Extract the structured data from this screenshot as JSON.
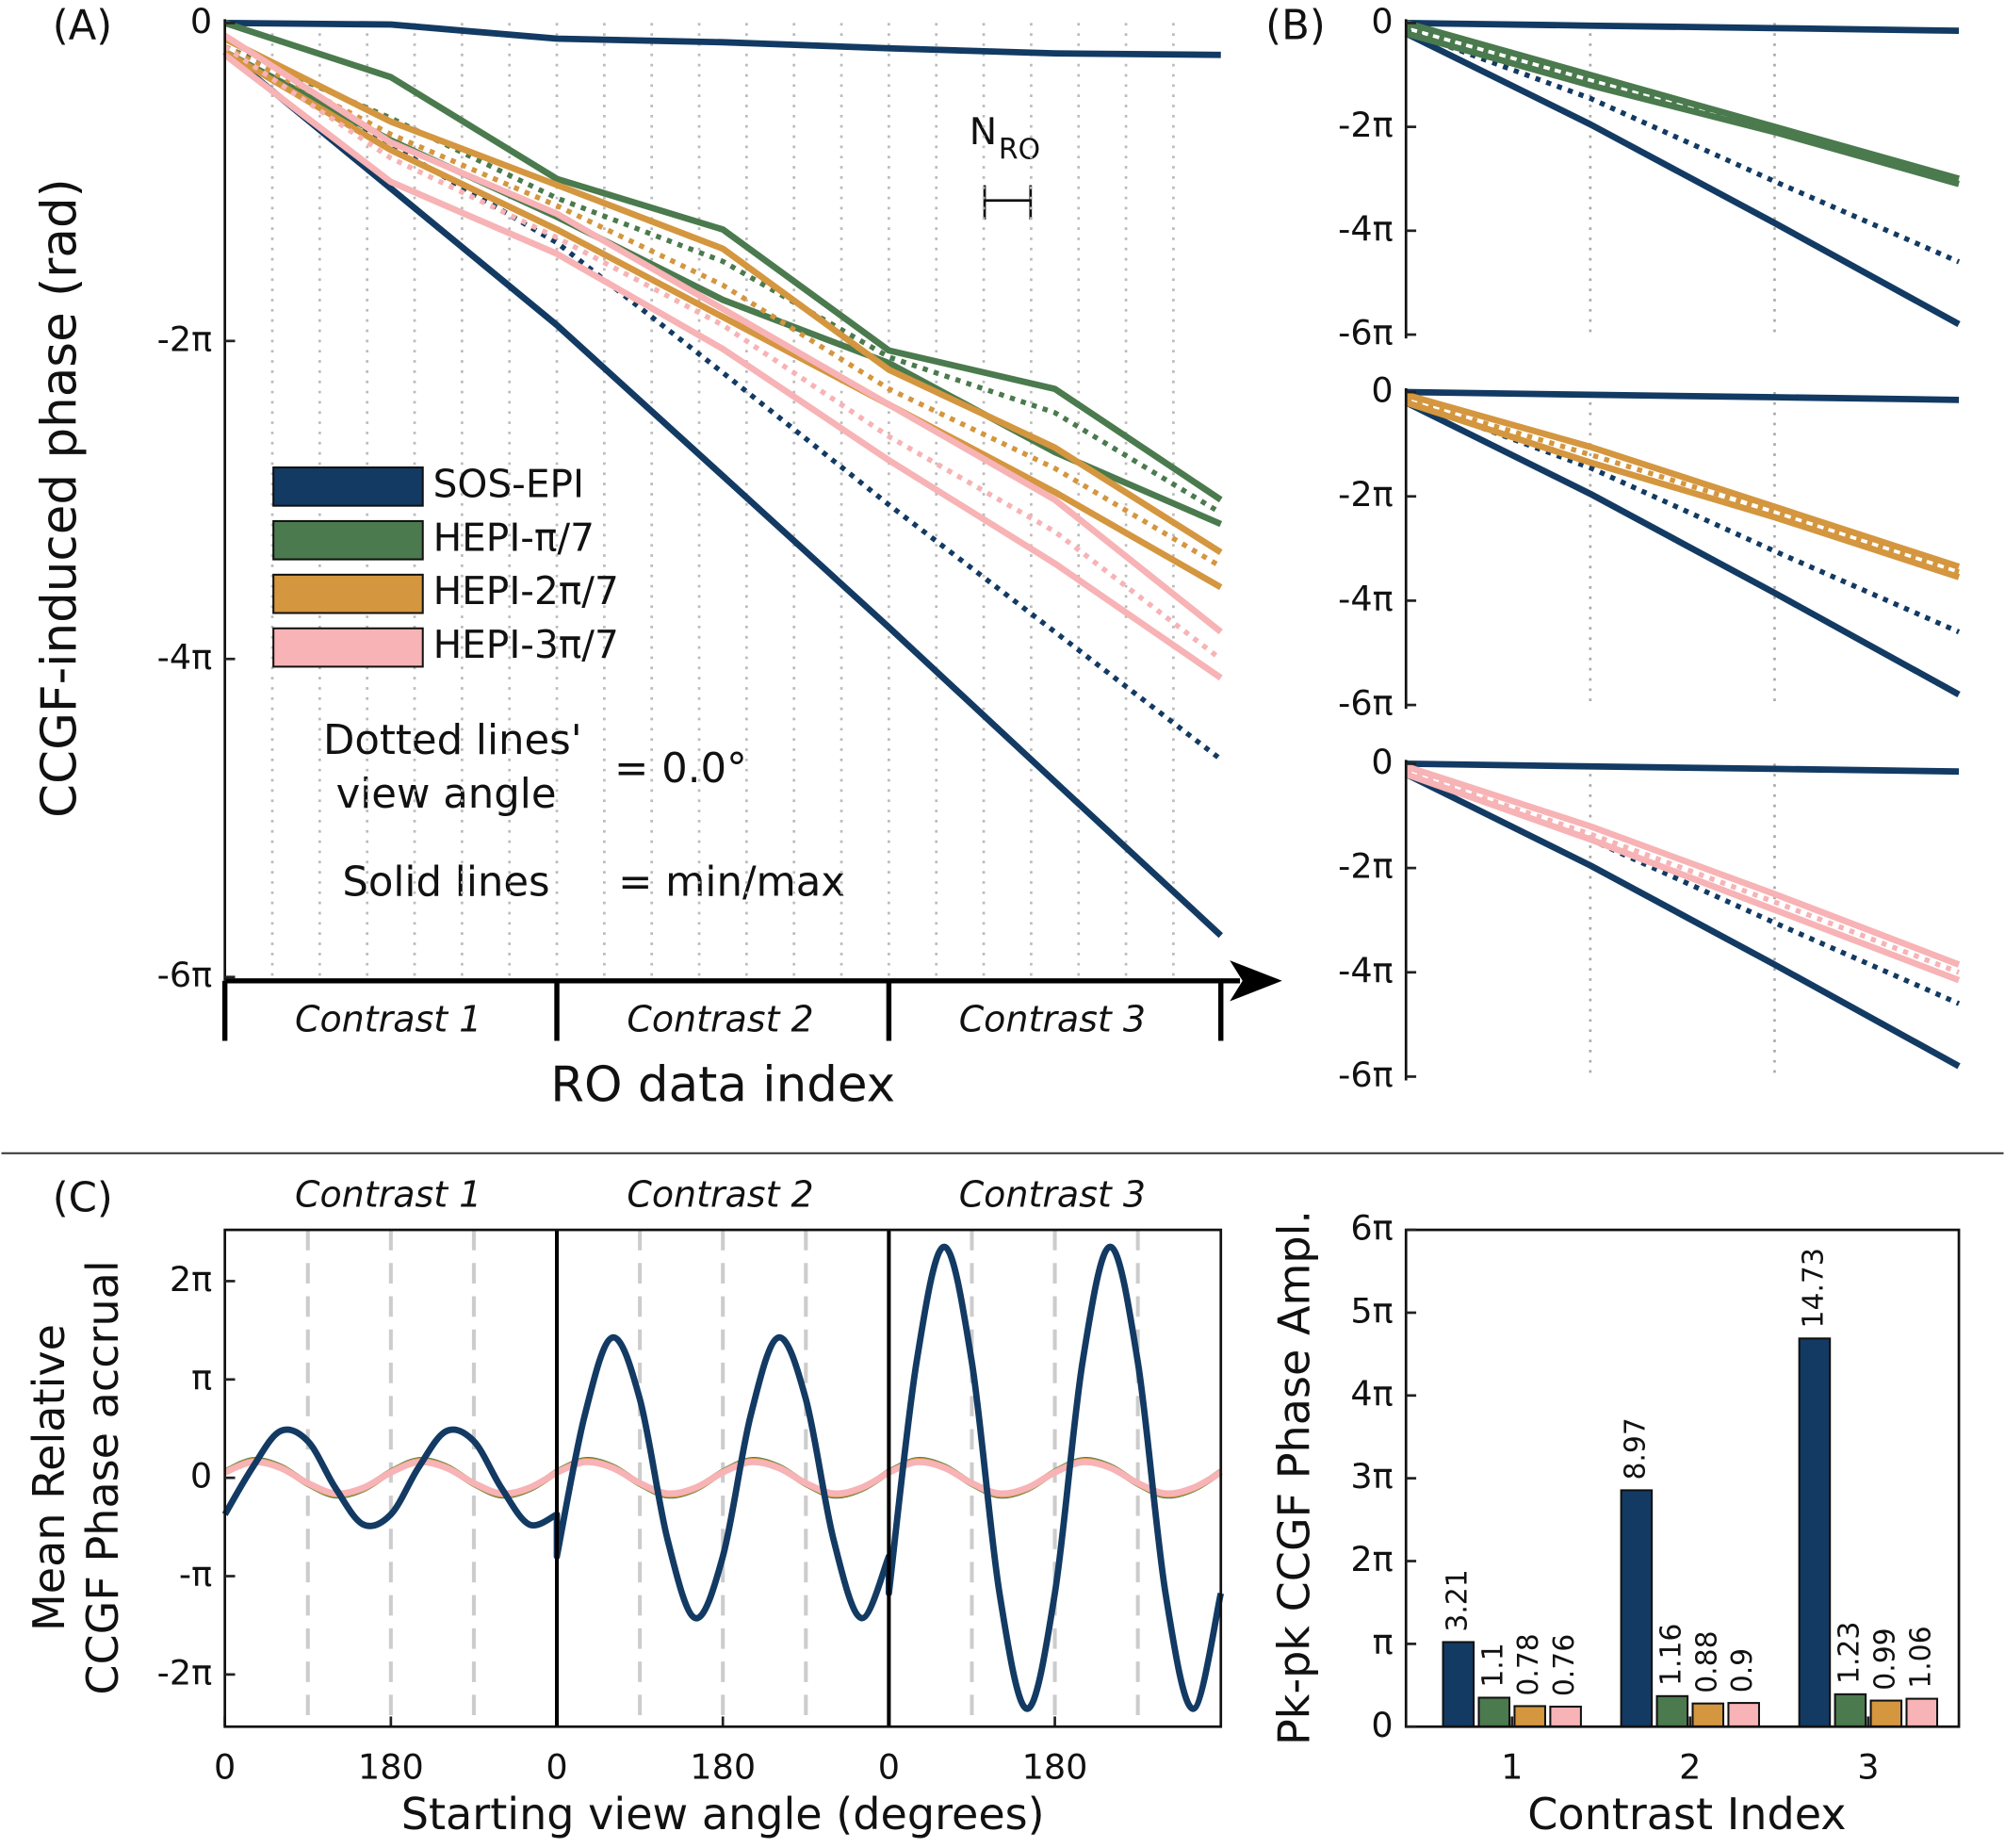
{
  "chart_data": [
    {
      "type": "line",
      "panel": "(A)",
      "ylabel": "CCGF-induced phase (rad)",
      "xlabel": "RO data index",
      "categories": [
        "Contrast 1",
        "Contrast 2",
        "Contrast 3"
      ],
      "annotations": [
        "Dotted lines'",
        "view angle",
        "= 0.0°",
        "Solid lines",
        "= min/max"
      ],
      "bracket_label": [
        "N",
        "RO"
      ],
      "xlim": [
        0,
        3
      ],
      "ylim": [
        -18.85,
        0
      ],
      "yticks": [
        0,
        {
          "value": -6.283,
          "label": "-2π"
        },
        {
          "value": -12.566,
          "label": "-4π"
        },
        {
          "value": -18.85,
          "label": "-6π"
        }
      ],
      "x": [
        0,
        0.5,
        1,
        1.5,
        2,
        2.5,
        3
      ],
      "series": [
        {
          "name": "SOS-EPI",
          "color": "#123a63",
          "max": [
            0,
            -0.03,
            -0.31,
            -0.38,
            -0.5,
            -0.6,
            -0.63
          ],
          "min": [
            -0.57,
            -3.27,
            -5.97,
            -8.95,
            -11.94,
            -14.99,
            -18.03
          ],
          "dotted": [
            -0.47,
            -2.42,
            -4.34,
            -6.91,
            -9.52,
            -12.03,
            -14.55
          ]
        },
        {
          "name": "HEPI-π/7",
          "color": "#4a7a4d",
          "max": [
            0,
            -1.07,
            -3.08,
            -4.08,
            -6.47,
            -7.23,
            -9.42
          ],
          "min": [
            -0.57,
            -2.32,
            -3.83,
            -5.47,
            -6.72,
            -8.48,
            -9.9
          ],
          "dotted": [
            -0.47,
            -1.88,
            -3.46,
            -4.71,
            -6.6,
            -7.7,
            -9.68
          ]
        },
        {
          "name": "HEPI-2π/7",
          "color": "#d4963f",
          "max": [
            -0.31,
            -1.95,
            -3.2,
            -4.46,
            -6.85,
            -8.39,
            -10.46
          ],
          "min": [
            -0.57,
            -2.51,
            -4.08,
            -5.81,
            -7.54,
            -9.27,
            -11.15
          ],
          "dotted": [
            -0.47,
            -2.2,
            -3.61,
            -5.18,
            -7.23,
            -8.8,
            -10.74
          ]
        },
        {
          "name": "HEPI-3π/7",
          "color": "#f7b3b5",
          "max": [
            -0.25,
            -2.36,
            -3.77,
            -5.65,
            -7.54,
            -9.42,
            -12.03
          ],
          "min": [
            -0.63,
            -3.14,
            -4.56,
            -6.44,
            -8.64,
            -10.68,
            -12.94
          ],
          "dotted": [
            -0.47,
            -2.67,
            -4.24,
            -5.97,
            -8.17,
            -10.05,
            -12.57
          ]
        }
      ]
    },
    {
      "type": "line",
      "panel": "(B)",
      "xlim": [
        0,
        3
      ],
      "ylim": [
        -18.85,
        0
      ],
      "yticks": [
        0,
        {
          "value": -6.283,
          "label": "-2π"
        },
        {
          "value": -12.566,
          "label": "-4π"
        },
        {
          "value": -18.85,
          "label": "-6π"
        }
      ],
      "x": [
        0,
        1,
        2,
        3
      ],
      "series": [
        {
          "color": "#123a63",
          "max": [
            0,
            -0.16,
            -0.31,
            -0.47
          ],
          "min": [
            -0.63,
            -6.13,
            -12.1,
            -18.22
          ],
          "dotted": [
            -0.47,
            -4.56,
            -9.58,
            -14.45
          ]
        },
        {
          "color": "#4a7a4d",
          "max": [
            0,
            -3.14,
            -6.28,
            -9.42
          ],
          "min": [
            -0.63,
            -3.77,
            -6.6,
            -9.74
          ],
          "dotted": [
            -0.31,
            -3.46,
            -6.44,
            -9.58
          ]
        }
      ]
    },
    {
      "type": "line",
      "xlim": [
        0,
        3
      ],
      "ylim": [
        -18.85,
        0
      ],
      "yticks": [
        0,
        {
          "value": -6.283,
          "label": "-2π"
        },
        {
          "value": -12.566,
          "label": "-4π"
        },
        {
          "value": -18.85,
          "label": "-6π"
        }
      ],
      "x": [
        0,
        1,
        2,
        3
      ],
      "series": [
        {
          "color": "#123a63",
          "max": [
            0,
            -0.16,
            -0.31,
            -0.47
          ],
          "min": [
            -0.63,
            -6.13,
            -12.1,
            -18.22
          ],
          "dotted": [
            -0.47,
            -4.56,
            -9.58,
            -14.45
          ]
        },
        {
          "color": "#d4963f",
          "max": [
            -0.16,
            -3.3,
            -6.91,
            -10.52
          ],
          "min": [
            -0.63,
            -4.24,
            -7.54,
            -11.15
          ],
          "dotted": [
            -0.47,
            -3.77,
            -7.23,
            -10.84
          ]
        }
      ]
    },
    {
      "type": "line",
      "xlim": [
        0,
        3
      ],
      "ylim": [
        -18.85,
        0
      ],
      "yticks": [
        0,
        {
          "value": -6.283,
          "label": "-2π"
        },
        {
          "value": -12.566,
          "label": "-4π"
        },
        {
          "value": -18.85,
          "label": "-6π"
        }
      ],
      "x": [
        0,
        1,
        2,
        3
      ],
      "series": [
        {
          "color": "#123a63",
          "max": [
            0,
            -0.16,
            -0.31,
            -0.47
          ],
          "min": [
            -0.63,
            -6.13,
            -12.1,
            -18.22
          ],
          "dotted": [
            -0.47,
            -4.56,
            -9.58,
            -14.45
          ]
        },
        {
          "color": "#f7b3b5",
          "max": [
            -0.16,
            -3.77,
            -7.85,
            -12.1
          ],
          "min": [
            -0.63,
            -4.56,
            -8.8,
            -13.04
          ],
          "dotted": [
            -0.47,
            -4.24,
            -8.33,
            -12.57
          ]
        }
      ]
    },
    {
      "type": "line",
      "panel": "(C)",
      "ylabel": [
        "Mean Relative",
        "CCGF Phase accrual"
      ],
      "xlabel": "Starting view angle (degrees)",
      "categories": [
        "Contrast 1",
        "Contrast 2",
        "Contrast 3"
      ],
      "xlim": [
        0,
        1080
      ],
      "ylim": [
        -7.95,
        7.92
      ],
      "xticks": [
        0,
        180,
        {
          "value": 360,
          "label": "0"
        },
        {
          "value": 540,
          "label": "180"
        },
        {
          "value": 720,
          "label": "0"
        },
        {
          "value": 900,
          "label": "180"
        }
      ],
      "yticks": [
        {
          "value": 6.283,
          "label": "2π"
        },
        {
          "value": 3.1416,
          "label": "π"
        },
        0,
        {
          "value": -3.1416,
          "label": "-π"
        },
        {
          "value": -6.283,
          "label": "-2π"
        }
      ],
      "grid_x": [
        90,
        180,
        270,
        450,
        540,
        630,
        810,
        900,
        990
      ],
      "dividers": [
        360,
        720
      ],
      "x": [
        0,
        30,
        60,
        90,
        120,
        150,
        180,
        210,
        240,
        270,
        300,
        330,
        360,
        360,
        390,
        420,
        450,
        480,
        510,
        540,
        570,
        600,
        630,
        660,
        690,
        720,
        720,
        750,
        780,
        810,
        840,
        870,
        900,
        930,
        960,
        990,
        1020,
        1050,
        1080
      ],
      "series": [
        {
          "color": "#4a7a4d",
          "values": [
            0.19,
            0.56,
            0.36,
            -0.19,
            -0.56,
            -0.36,
            0.19,
            0.56,
            0.36,
            -0.19,
            -0.56,
            -0.36,
            0.19,
            0.19,
            0.56,
            0.36,
            -0.19,
            -0.56,
            -0.36,
            0.19,
            0.56,
            0.36,
            -0.19,
            -0.56,
            -0.36,
            0.19,
            0.19,
            0.56,
            0.36,
            -0.19,
            -0.56,
            -0.36,
            0.19,
            0.56,
            0.36,
            -0.19,
            -0.56,
            -0.36,
            0.19
          ]
        },
        {
          "color": "#d4963f",
          "values": [
            0.18,
            0.53,
            0.34,
            -0.18,
            -0.53,
            -0.34,
            0.18,
            0.53,
            0.34,
            -0.18,
            -0.53,
            -0.34,
            0.18,
            0.18,
            0.53,
            0.34,
            -0.18,
            -0.53,
            -0.34,
            0.18,
            0.53,
            0.34,
            -0.18,
            -0.53,
            -0.34,
            0.18,
            0.18,
            0.53,
            0.34,
            -0.18,
            -0.53,
            -0.34,
            0.18,
            0.53,
            0.34,
            -0.18,
            -0.53,
            -0.34,
            0.18
          ]
        },
        {
          "color": "#f7b3b5",
          "values": [
            0.17,
            0.5,
            0.32,
            -0.17,
            -0.5,
            -0.32,
            0.17,
            0.5,
            0.32,
            -0.17,
            -0.5,
            -0.32,
            0.17,
            0.17,
            0.5,
            0.32,
            -0.17,
            -0.5,
            -0.32,
            0.17,
            0.5,
            0.32,
            -0.17,
            -0.5,
            -0.32,
            0.17,
            0.17,
            0.5,
            0.32,
            -0.17,
            -0.5,
            -0.32,
            0.17,
            0.5,
            0.32,
            -0.17,
            -0.5,
            -0.32,
            0.17
          ]
        },
        {
          "color": "#123a63",
          "values": [
            -1.17,
            0.33,
            1.49,
            1.17,
            -0.33,
            -1.49,
            -1.17,
            0.33,
            1.49,
            1.17,
            -0.33,
            -1.49,
            -1.17,
            -2.51,
            1.97,
            4.48,
            2.51,
            -1.97,
            -4.48,
            -2.51,
            1.97,
            4.48,
            2.51,
            -1.97,
            -4.48,
            -2.51,
            -3.69,
            3.69,
            7.38,
            3.69,
            -3.69,
            -7.38,
            -3.69,
            3.69,
            7.38,
            3.69,
            -3.69,
            -7.38,
            -3.69
          ]
        }
      ]
    },
    {
      "type": "bar",
      "ylabel": "Pk-pk CCGF Phase Ampl.",
      "xlabel": "Contrast Index",
      "categories": [
        "1",
        "2",
        "3"
      ],
      "ylim": [
        0,
        18.85
      ],
      "yticks": [
        0,
        {
          "value": 3.1416,
          "label": "π"
        },
        {
          "value": 6.283,
          "label": "2π"
        },
        {
          "value": 9.425,
          "label": "3π"
        },
        {
          "value": 12.566,
          "label": "4π"
        },
        {
          "value": 15.708,
          "label": "5π"
        },
        {
          "value": 18.85,
          "label": "6π"
        }
      ],
      "series": [
        {
          "color": "#123a63",
          "values": [
            3.21,
            8.97,
            14.73
          ]
        },
        {
          "color": "#4a7a4d",
          "values": [
            1.1,
            1.16,
            1.23
          ]
        },
        {
          "color": "#d4963f",
          "values": [
            0.78,
            0.88,
            0.99
          ]
        },
        {
          "color": "#f7b3b5",
          "values": [
            0.76,
            0.9,
            1.06
          ]
        }
      ]
    }
  ]
}
